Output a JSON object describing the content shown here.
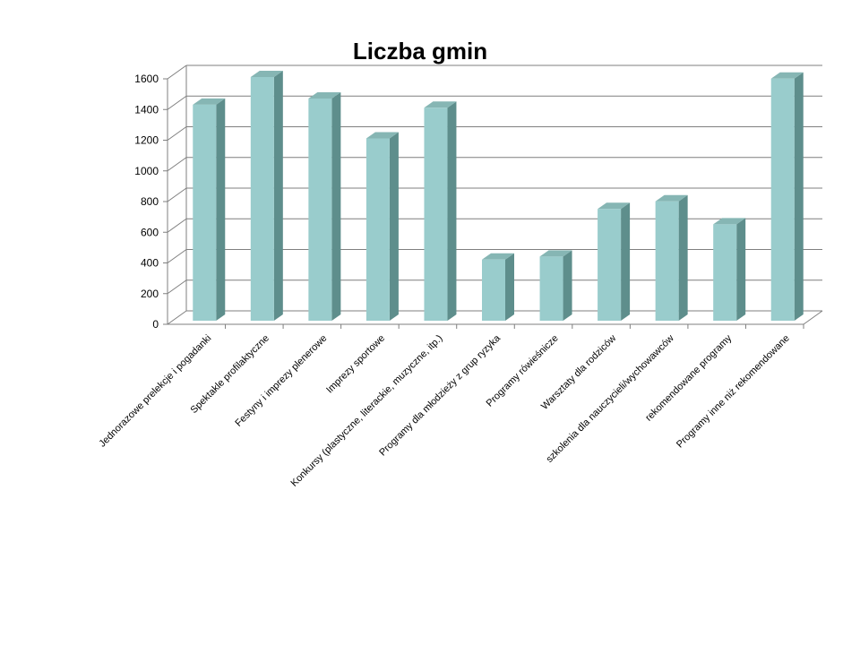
{
  "chart_data": {
    "type": "bar",
    "title": "Liczba gmin",
    "xlabel": "",
    "ylabel": "",
    "ylim": [
      0,
      1600
    ],
    "yticks": [
      0,
      200,
      400,
      600,
      800,
      1000,
      1200,
      1400,
      1600
    ],
    "grid": true,
    "legend": "none",
    "categories": [
      "Jednorazowe prelekcje i pogadanki",
      "Spektakle profilaktyczne",
      "Festyny i imprezy plenerowe",
      "Imprezy sportowe",
      "Konkursy (plastyczne, literackie, muzyczne,  itp.)",
      "Programy dla młodzieży z grup ryzyka",
      "Programy rówieśnicze",
      "Warsztaty dla rodziców",
      "szkolenia dla nauczycieli/wychowawców",
      "rekomendowane programy",
      "Programy inne niż rekomendowane"
    ],
    "values": [
      1420,
      1600,
      1460,
      1200,
      1400,
      410,
      430,
      740,
      790,
      640,
      1590
    ],
    "colors": {
      "bar_front": "#99cccc",
      "bar_side": "#5e8e8c",
      "bar_top": "#86b6b4",
      "grid": "#7f7f7f"
    }
  }
}
